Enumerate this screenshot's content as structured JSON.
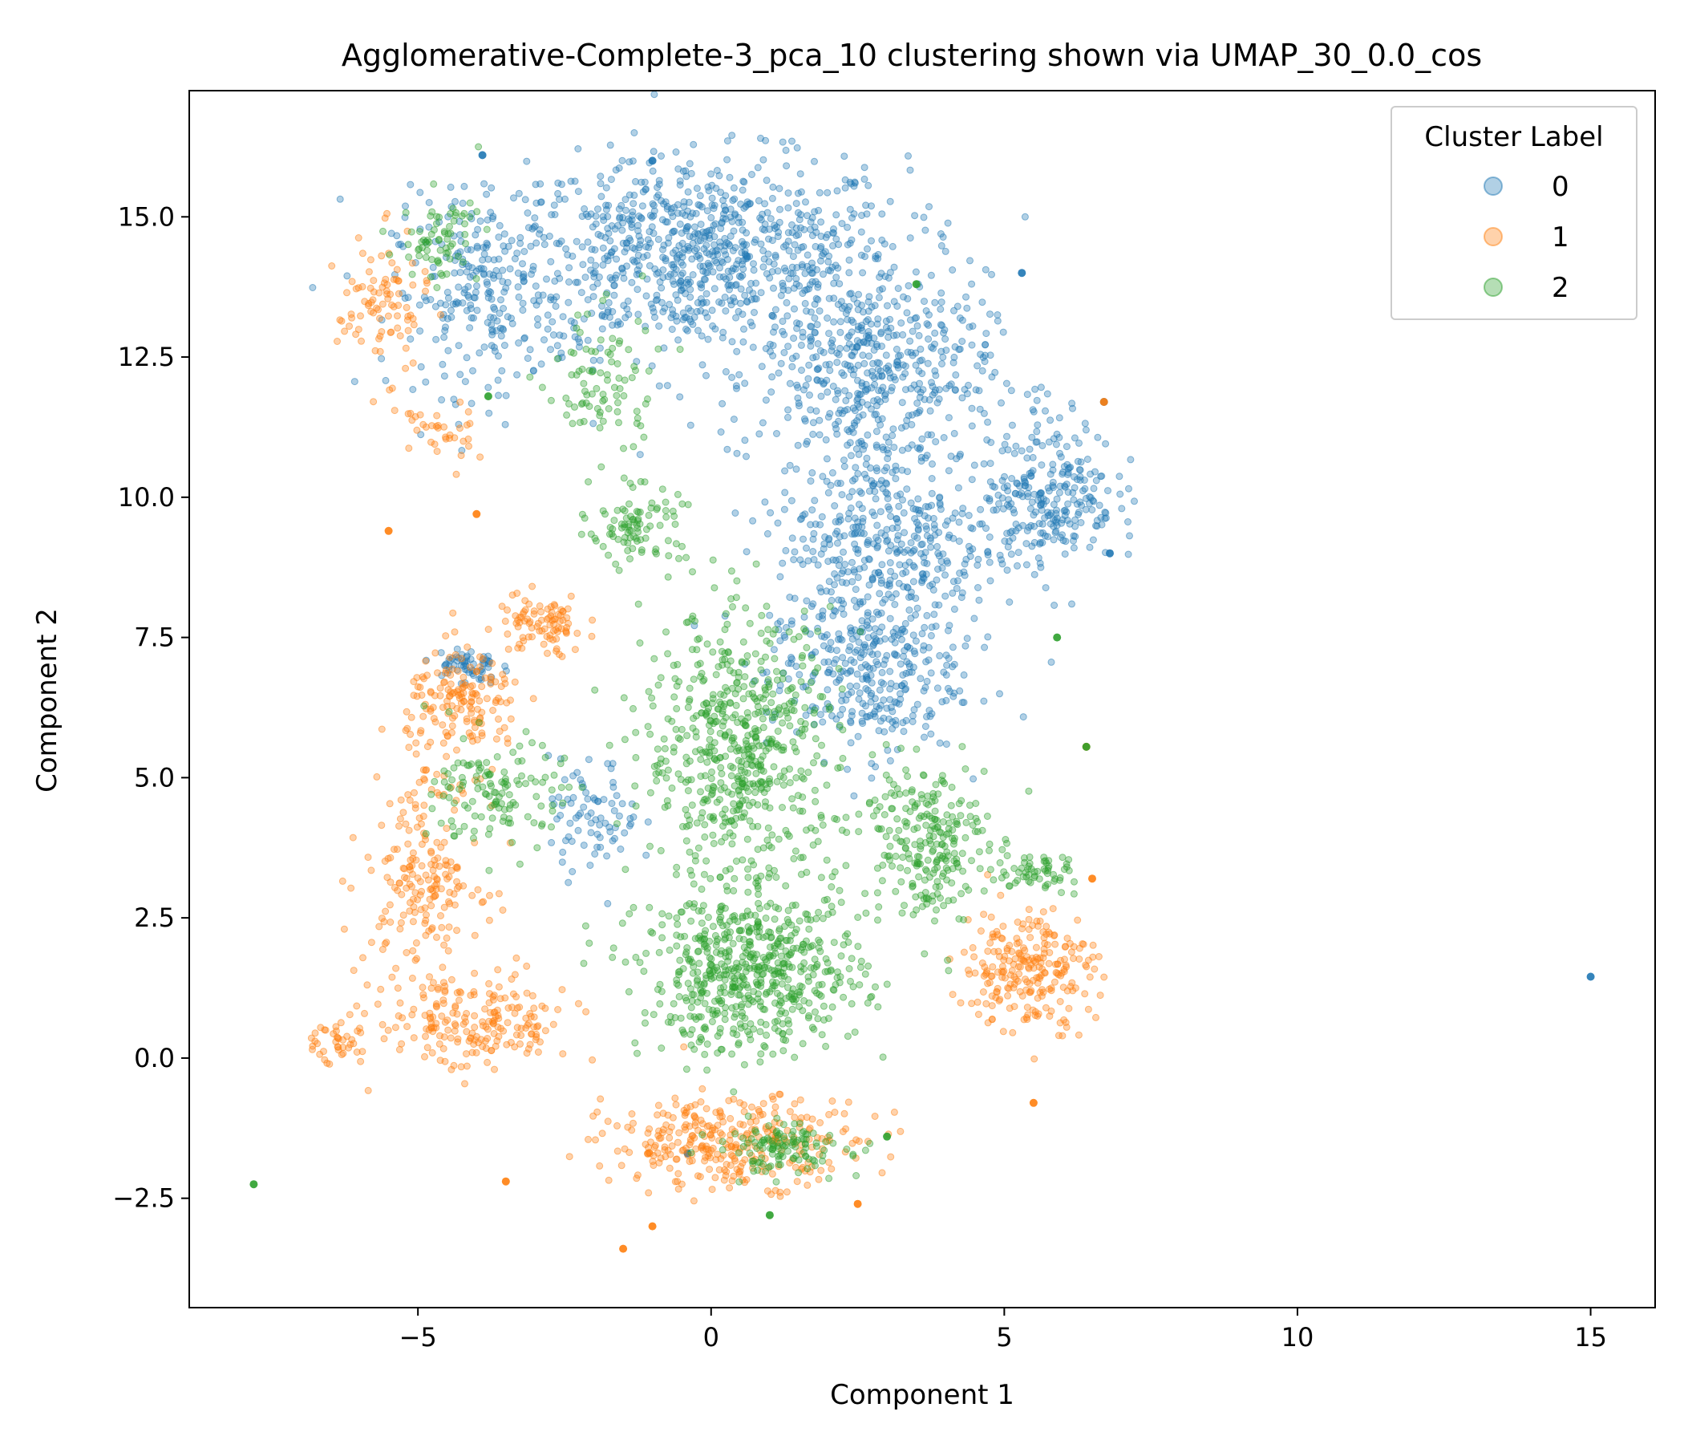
{
  "chart_data": {
    "type": "scatter",
    "title": "Agglomerative-Complete-3_pca_10 clustering shown via UMAP_30_0.0_cos",
    "xlabel": "Component 1",
    "ylabel": "Component 2",
    "xlim": [
      -8.9,
      16.1
    ],
    "ylim": [
      -4.45,
      17.25
    ],
    "xticks": [
      -5,
      0,
      5,
      10,
      15
    ],
    "xtick_labels": [
      "−5",
      "0",
      "5",
      "10",
      "15"
    ],
    "yticks": [
      -2.5,
      0.0,
      2.5,
      5.0,
      7.5,
      10.0,
      12.5,
      15.0
    ],
    "ytick_labels": [
      "−2.5",
      "0.0",
      "2.5",
      "5.0",
      "7.5",
      "10.0",
      "12.5",
      "15.0"
    ],
    "grid": false,
    "legend": {
      "title": "Cluster Label",
      "placement": "top-right"
    },
    "series": [
      {
        "name": "0",
        "color": "#1f77b4",
        "regions": [
          {
            "center": [
              -0.2,
              14.3
            ],
            "spread": [
              3.2,
              1.6
            ],
            "n": 900
          },
          {
            "center": [
              -3.9,
              13.6
            ],
            "spread": [
              1.4,
              1.6
            ],
            "n": 220
          },
          {
            "center": [
              2.8,
              12.2
            ],
            "spread": [
              1.8,
              1.6
            ],
            "n": 450
          },
          {
            "center": [
              3.0,
              9.2
            ],
            "spread": [
              1.8,
              1.8
            ],
            "n": 450
          },
          {
            "center": [
              2.6,
              6.8
            ],
            "spread": [
              1.5,
              1.3
            ],
            "n": 300
          },
          {
            "center": [
              5.8,
              10.1
            ],
            "spread": [
              1.0,
              1.2
            ],
            "n": 260
          },
          {
            "center": [
              -4.2,
              7.0
            ],
            "spread": [
              0.5,
              0.3
            ],
            "n": 60
          },
          {
            "center": [
              -2.0,
              4.3
            ],
            "spread": [
              0.7,
              0.9
            ],
            "n": 80
          }
        ],
        "points": [
          [
            15.0,
            1.45
          ],
          [
            6.7,
            11.7
          ],
          [
            5.3,
            14.0
          ],
          [
            -1.0,
            16.0
          ],
          [
            -3.9,
            16.1
          ],
          [
            -0.4,
            -1.7
          ],
          [
            6.8,
            9.0
          ]
        ]
      },
      {
        "name": "1",
        "color": "#ff7f0e",
        "regions": [
          {
            "center": [
              -4.2,
              6.3
            ],
            "spread": [
              0.9,
              0.9
            ],
            "n": 160
          },
          {
            "center": [
              -2.9,
              7.7
            ],
            "spread": [
              0.7,
              0.5
            ],
            "n": 90
          },
          {
            "center": [
              -4.9,
              3.3
            ],
            "spread": [
              0.9,
              1.6
            ],
            "n": 200
          },
          {
            "center": [
              -4.0,
              0.6
            ],
            "spread": [
              1.5,
              0.8
            ],
            "n": 200
          },
          {
            "center": [
              -5.6,
              13.4
            ],
            "spread": [
              0.7,
              1.1
            ],
            "n": 90
          },
          {
            "center": [
              -4.7,
              11.1
            ],
            "spread": [
              0.6,
              0.6
            ],
            "n": 35
          },
          {
            "center": [
              0.4,
              -1.5
            ],
            "spread": [
              2.0,
              0.7
            ],
            "n": 320
          },
          {
            "center": [
              5.4,
              1.6
            ],
            "spread": [
              1.0,
              1.0
            ],
            "n": 240
          },
          {
            "center": [
              -6.4,
              0.3
            ],
            "spread": [
              0.6,
              0.4
            ],
            "n": 40
          }
        ],
        "points": [
          [
            6.7,
            11.7
          ],
          [
            6.4,
            5.55
          ],
          [
            -1.5,
            -3.4
          ],
          [
            -3.5,
            -2.2
          ],
          [
            -5.5,
            9.4
          ],
          [
            -4.0,
            9.7
          ],
          [
            -1.0,
            -3.0
          ],
          [
            6.5,
            3.2
          ],
          [
            2.5,
            -2.6
          ],
          [
            5.5,
            -0.8
          ]
        ]
      },
      {
        "name": "2",
        "color": "#2ca02c",
        "regions": [
          {
            "center": [
              0.5,
              5.5
            ],
            "spread": [
              1.5,
              2.2
            ],
            "n": 600
          },
          {
            "center": [
              0.7,
              1.5
            ],
            "spread": [
              1.7,
              1.3
            ],
            "n": 600
          },
          {
            "center": [
              3.6,
              3.9
            ],
            "spread": [
              1.0,
              1.3
            ],
            "n": 250
          },
          {
            "center": [
              -3.6,
              4.7
            ],
            "spread": [
              1.0,
              0.9
            ],
            "n": 130
          },
          {
            "center": [
              -1.3,
              9.5
            ],
            "spread": [
              0.7,
              0.6
            ],
            "n": 90
          },
          {
            "center": [
              -1.9,
              12.0
            ],
            "spread": [
              0.9,
              1.3
            ],
            "n": 90
          },
          {
            "center": [
              -4.6,
              14.6
            ],
            "spread": [
              0.6,
              0.7
            ],
            "n": 70
          },
          {
            "center": [
              1.2,
              -1.6
            ],
            "spread": [
              1.0,
              0.4
            ],
            "n": 120
          },
          {
            "center": [
              5.5,
              3.3
            ],
            "spread": [
              0.8,
              0.3
            ],
            "n": 60
          }
        ],
        "points": [
          [
            -7.8,
            -2.25
          ],
          [
            1.0,
            -2.8
          ],
          [
            6.4,
            5.55
          ],
          [
            3.0,
            -1.4
          ],
          [
            5.9,
            7.5
          ],
          [
            3.5,
            13.8
          ],
          [
            -3.8,
            11.8
          ]
        ]
      }
    ]
  }
}
